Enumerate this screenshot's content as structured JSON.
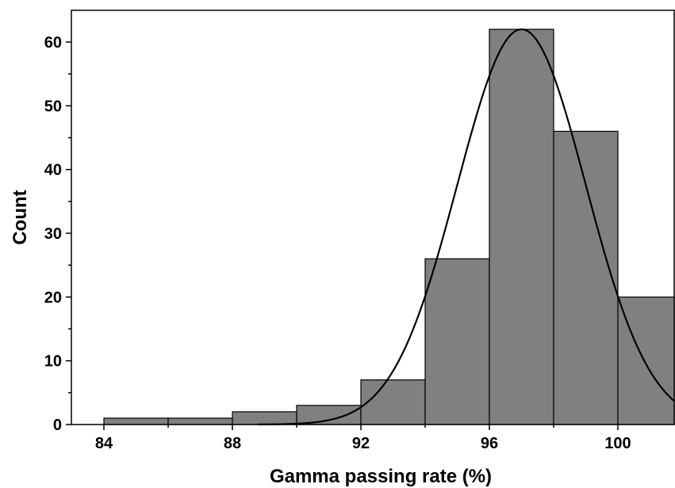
{
  "chart_data": {
    "type": "bar",
    "subtype": "histogram",
    "xlabel": "Gamma passing rate (%)",
    "ylabel": "Count",
    "xlim": [
      83,
      102
    ],
    "ylim": [
      0,
      65
    ],
    "xticks": [
      "84",
      "88",
      "92",
      "96",
      "100"
    ],
    "yticks": [
      "0",
      "10",
      "20",
      "30",
      "40",
      "50",
      "60"
    ],
    "bin_width": 2,
    "bins": [
      {
        "start": 84,
        "end": 86,
        "count": 1
      },
      {
        "start": 86,
        "end": 88,
        "count": 1
      },
      {
        "start": 88,
        "end": 90,
        "count": 2
      },
      {
        "start": 90,
        "end": 92,
        "count": 3
      },
      {
        "start": 92,
        "end": 94,
        "count": 7
      },
      {
        "start": 94,
        "end": 96,
        "count": 26
      },
      {
        "start": 96,
        "end": 98,
        "count": 62
      },
      {
        "start": 98,
        "end": 100,
        "count": 46
      },
      {
        "start": 100,
        "end": 102,
        "count": 20
      }
    ],
    "fit_curve": {
      "type": "normal",
      "mean": 97,
      "peak": 62,
      "sigma": 2
    },
    "bar_color": "#808080",
    "grid": false,
    "legend": "none"
  }
}
